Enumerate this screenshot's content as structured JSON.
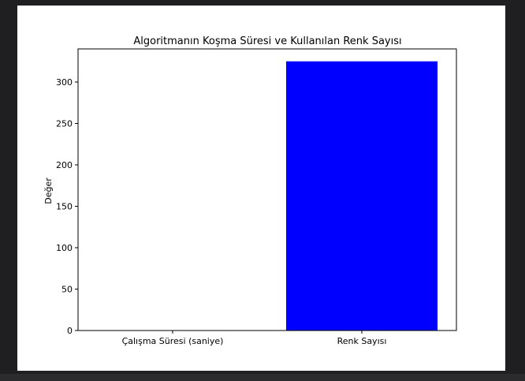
{
  "chart_data": {
    "type": "bar",
    "title": "Algoritmanın Koşma Süresi ve Kullanılan Renk Sayısı",
    "xlabel": "",
    "ylabel": "Değer",
    "categories": [
      "Çalışma Süresi (saniye)",
      "Renk Sayısı"
    ],
    "values": [
      0.04,
      325
    ],
    "ylim": [
      0,
      340
    ],
    "yticks": [
      0,
      50,
      100,
      150,
      200,
      250,
      300
    ],
    "bar_color": "#0000ff",
    "grid": false,
    "legend": false
  }
}
